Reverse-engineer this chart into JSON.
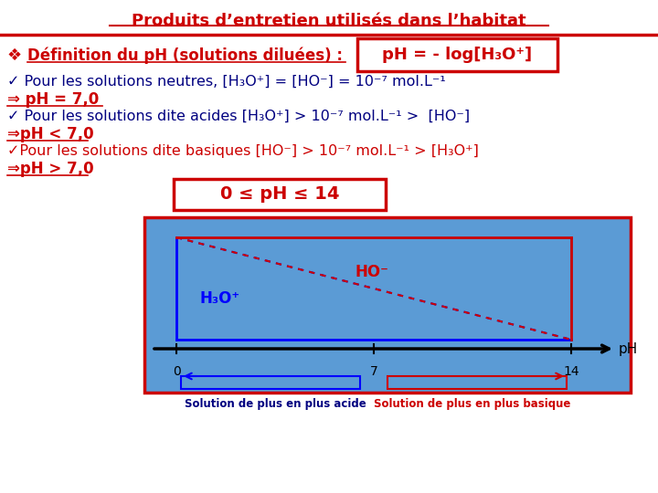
{
  "title": "Produits d’entretien utilisés dans l’habitat",
  "title_color": "#CC0000",
  "title_fontsize": 13,
  "bg_color": "#ffffff",
  "line1_bullet": "❖ ",
  "line1_text": "Définition du pH (solutions diluées) :",
  "line1_color": "#CC0000",
  "box_text": "pH = - log[H₃O⁺]",
  "box_color": "#CC0000",
  "neutral_text": "✓ Pour les solutions neutres, [H₃O⁺] = [HO⁻] = 10⁻⁷ mol.L⁻¹",
  "neutral_color": "#000080",
  "arrow1_text": "⇒ pH = 7,0",
  "arrow1_color": "#CC0000",
  "acid_text": "✓ Pour les solutions dite acides [H₃O⁺] > 10⁻⁷ mol.L⁻¹ >  [HO⁻]",
  "acid_color": "#000080",
  "arrow2_text": "⇒pH < 7,0",
  "arrow2_color": "#CC0000",
  "basic_text": "✓Pour les solutions dite basiques [HO⁻] > 10⁻⁷ mol.L⁻¹ > [H₃O⁺]",
  "basic_color": "#CC0000",
  "arrow3_text": "⇒pH > 7,0",
  "arrow3_color": "#CC0000",
  "box2_text": "0 ≤ pH ≤ 14",
  "box2_color": "#CC0000",
  "diagram_bg": "#5b9bd5",
  "diagram_border": "#CC0000",
  "h3o_label": "H₃O⁺",
  "ho_label": "HO⁻",
  "ph_label": "pH",
  "tick0": "0",
  "tick7": "7",
  "tick14": "14",
  "arrow_left_text": "Solution de plus en plus acide",
  "arrow_left_color": "#000080",
  "arrow_right_text": "Solution de plus en plus basique",
  "arrow_right_color": "#CC0000"
}
